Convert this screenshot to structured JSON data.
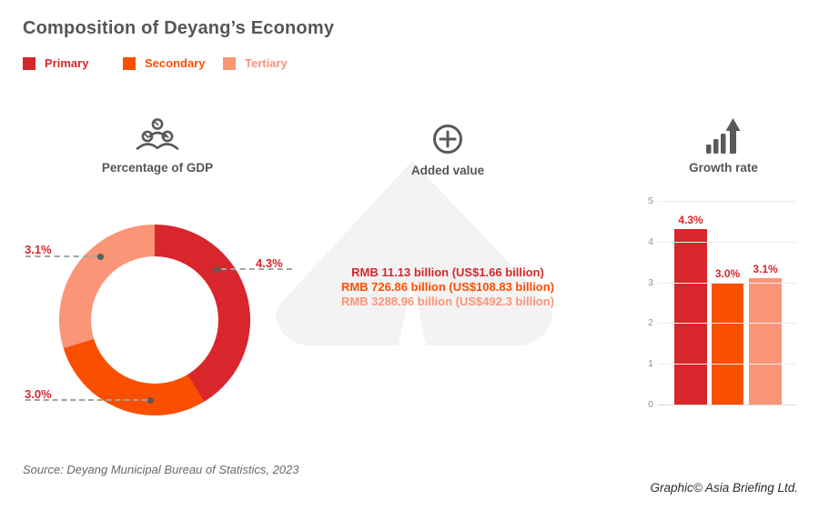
{
  "title": "Composition of Deyang’s Economy",
  "legend": {
    "items": [
      {
        "label": "Primary",
        "color": "#d8262c"
      },
      {
        "label": "Secondary",
        "color": "#fb4f00"
      },
      {
        "label": "Tertiary",
        "color": "#fa9577"
      }
    ]
  },
  "sections": {
    "gdp_label": "Percentage of GDP",
    "added_value_label": "Added value",
    "growth_label": "Growth rate"
  },
  "icons": {
    "gdp": "people-group-icon",
    "added_value": "plus-circle-icon",
    "growth": "bar-chart-up-arrow-icon",
    "watermark": "asia-briefing-mountain-watermark"
  },
  "colors": {
    "primary": "#d8262c",
    "secondary": "#fb4f00",
    "tertiary": "#fa9577",
    "heading_gray": "#55565a",
    "icon_gray": "#58595b",
    "watermark_gray": "#f3f3f4",
    "leader_line_gray": "#a3a3a3"
  },
  "chart_data": [
    {
      "type": "pie",
      "variant": "donut",
      "title": "Percentage of GDP",
      "categories": [
        "Primary",
        "Secondary",
        "Tertiary"
      ],
      "values": [
        4.3,
        3.0,
        3.1
      ],
      "point_labels": [
        "4.3%",
        "3.0%",
        "3.1%"
      ],
      "colors": [
        "#d8262c",
        "#fb4f00",
        "#fa9577"
      ],
      "start_angle_deg": 0,
      "direction": "clockwise",
      "legend_position": "top-left"
    },
    {
      "type": "table",
      "title": "Added value",
      "rows": [
        {
          "series": "Primary",
          "value": "RMB 11.13 billion (US$1.66 billion)",
          "color": "#d8262c"
        },
        {
          "series": "Secondary",
          "value": "RMB 726.86 billion (US$108.83 billion)",
          "color": "#fb4f00"
        },
        {
          "series": "Tertiary",
          "value": "RMB 3288.96 billion (US$492.3 billion)",
          "color": "#fa9577"
        }
      ]
    },
    {
      "type": "bar",
      "title": "Growth rate",
      "categories": [
        "Primary",
        "Secondary",
        "Tertiary"
      ],
      "values": [
        4.3,
        3.0,
        3.1
      ],
      "bar_labels": [
        "4.3%",
        "3.0%",
        "3.1%"
      ],
      "colors": [
        "#d8262c",
        "#fb4f00",
        "#fa9577"
      ],
      "ylim": [
        0,
        5
      ],
      "yticks": [
        0,
        1,
        2,
        3,
        4,
        5
      ],
      "grid": true,
      "legend_position": "none"
    }
  ],
  "footer": {
    "source": "Source: Deyang Municipal Bureau of Statistics, 2023",
    "credit": "Graphic© Asia Briefing Ltd."
  }
}
